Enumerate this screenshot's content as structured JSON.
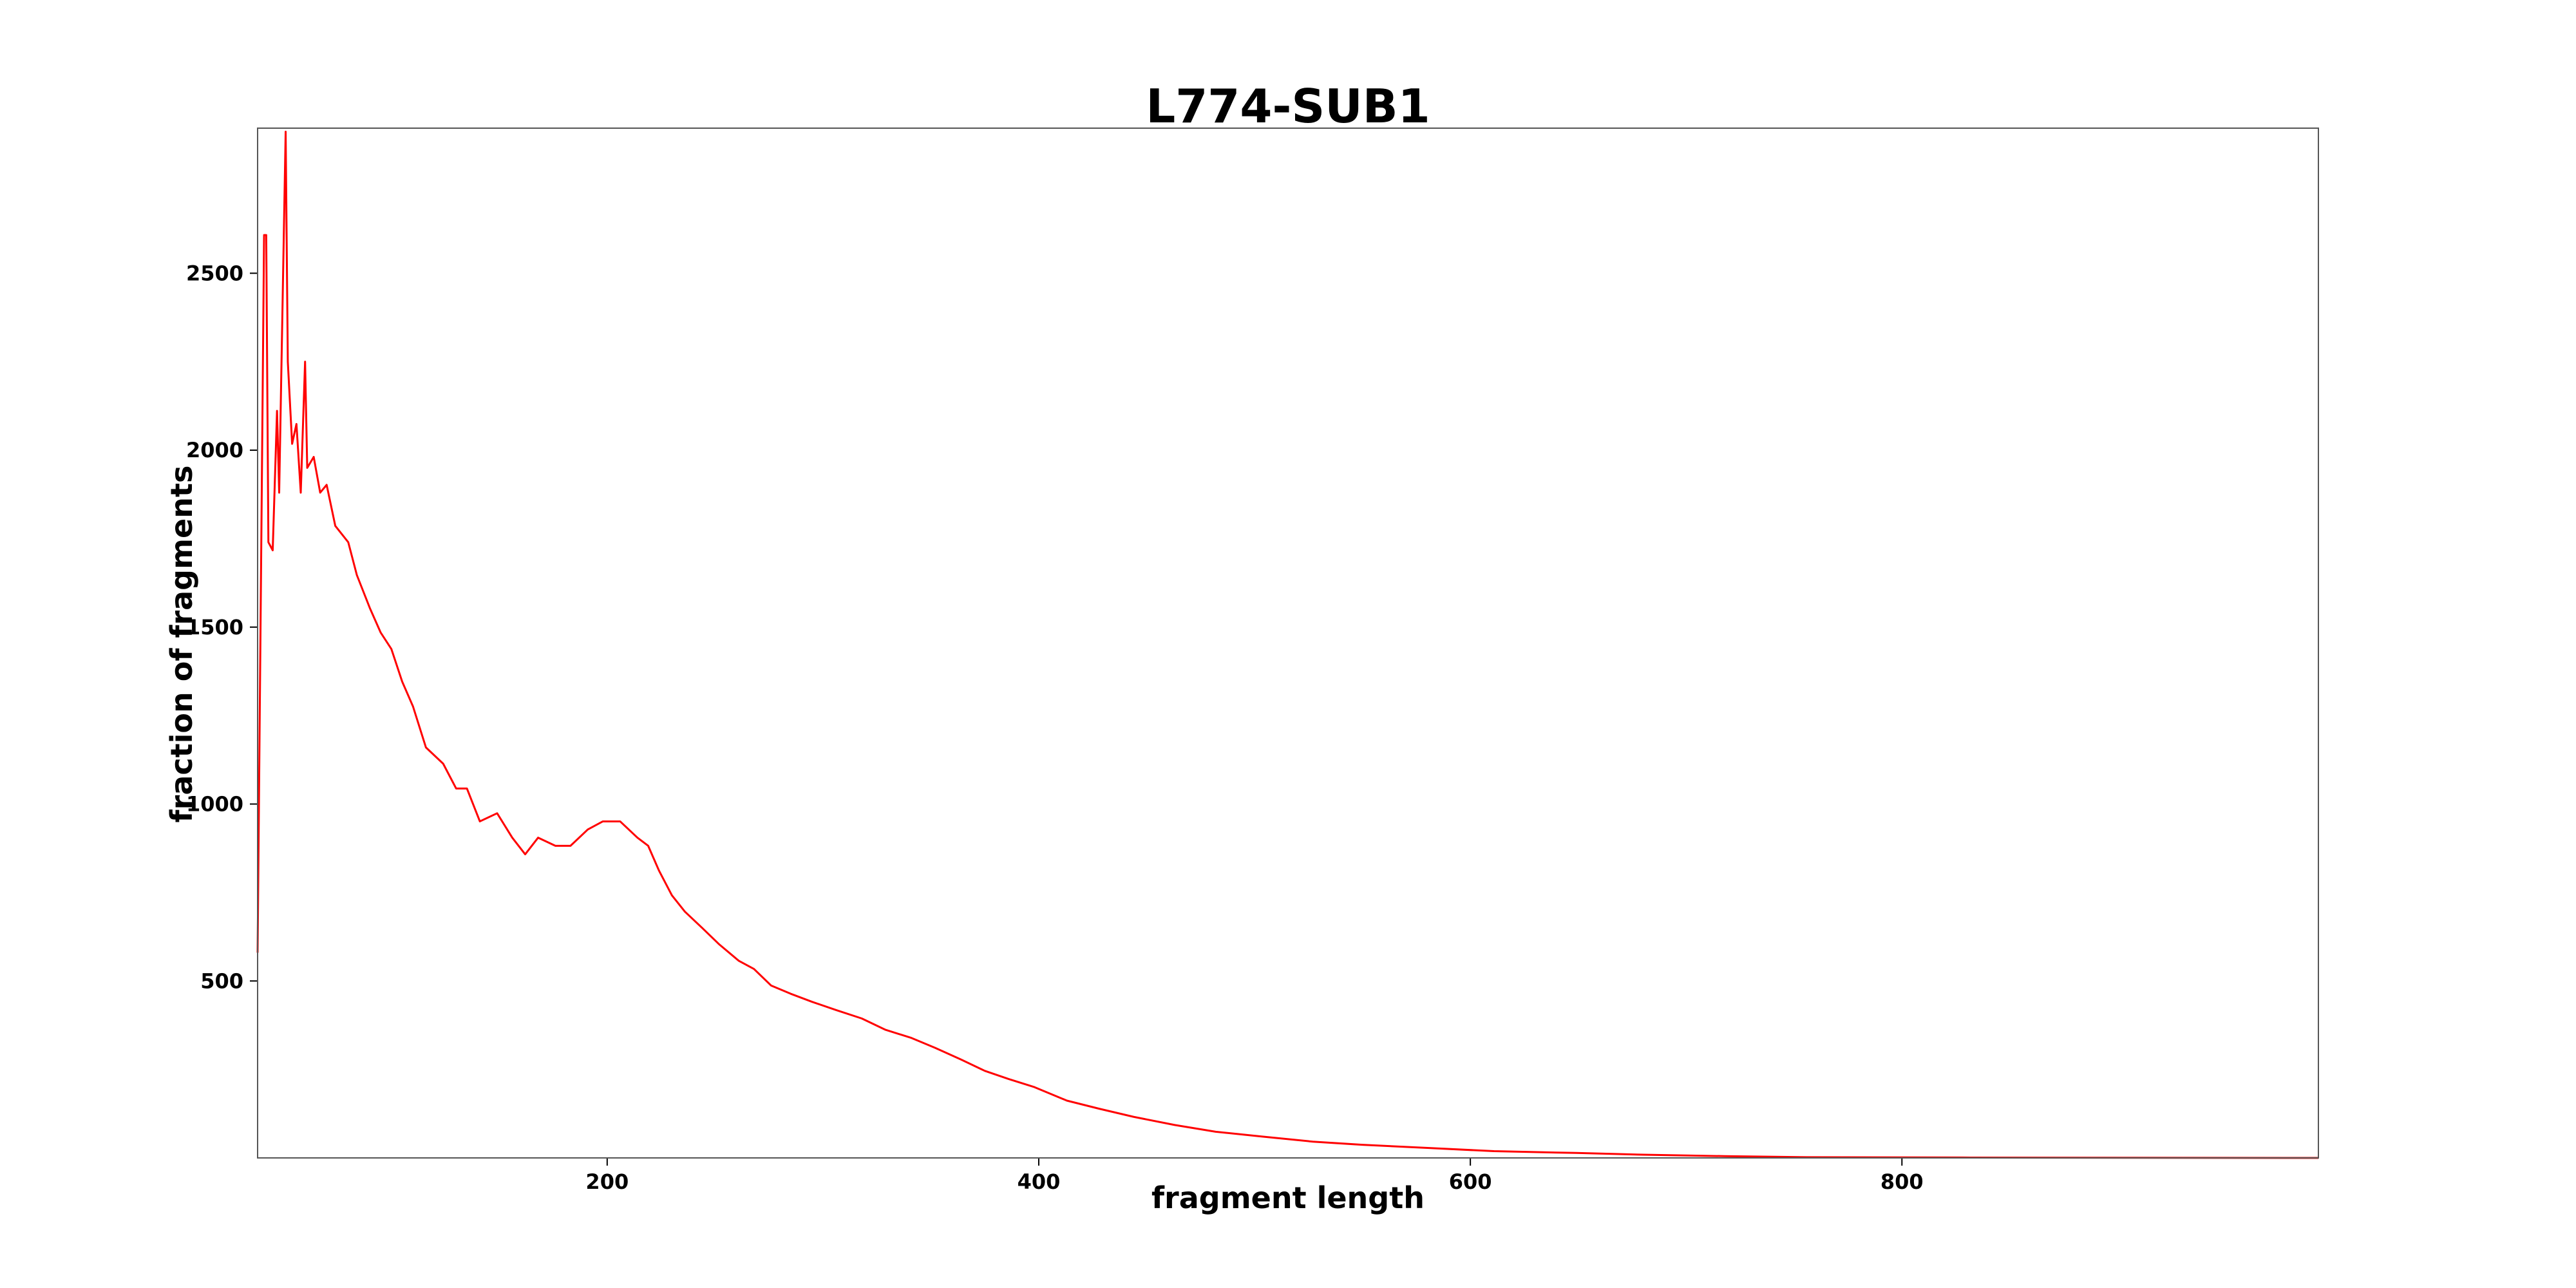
{
  "chart_data": {
    "type": "line",
    "title": "L774-SUB1",
    "xlabel": "fragment length",
    "ylabel": "fraction of fragments",
    "x": [
      38,
      41,
      42,
      43,
      45,
      47,
      48,
      51,
      52,
      54,
      56,
      58,
      60,
      61,
      64,
      67,
      70,
      74,
      80,
      84,
      90,
      95,
      100,
      105,
      110,
      116,
      124,
      130,
      135,
      141,
      149,
      156,
      162,
      168,
      176,
      183,
      191,
      198,
      206,
      214,
      219,
      224,
      230,
      236,
      244,
      252,
      261,
      268,
      276,
      285,
      295,
      306,
      318,
      329,
      341,
      352,
      364,
      375,
      386,
      398,
      413,
      428,
      444,
      463,
      482,
      504,
      527,
      550,
      581,
      611,
      649,
      680,
      718,
      756,
      832,
      908,
      993
    ],
    "series": [
      {
        "name": "L774-SUB1",
        "color": "#ff0000",
        "values": [
          580,
          2608,
          2608,
          1740,
          1717,
          2111,
          1880,
          2900,
          2250,
          2018,
          2074,
          1880,
          2250,
          1950,
          1981,
          1880,
          1902,
          1786,
          1740,
          1647,
          1554,
          1485,
          1438,
          1346,
          1276,
          1160,
          1114,
          1044,
          1044,
          951,
          974,
          905,
          858,
          905,
          882,
          882,
          928,
          951,
          951,
          905,
          882,
          812,
          742,
          696,
          650,
          603,
          557,
          534,
          487,
          464,
          441,
          418,
          394,
          362,
          339,
          311,
          278,
          246,
          223,
          200,
          162,
          139,
          116,
          93,
          74,
          60,
          46,
          37,
          28,
          19,
          14,
          9,
          5,
          2,
          1,
          0.5,
          0
        ]
      }
    ],
    "xlim": [
      38,
      993
    ],
    "ylim": [
      0,
      2910
    ],
    "xticks": [
      200,
      400,
      600,
      800
    ],
    "yticks": [
      500,
      1000,
      1500,
      2000,
      2500
    ],
    "grid": false
  }
}
